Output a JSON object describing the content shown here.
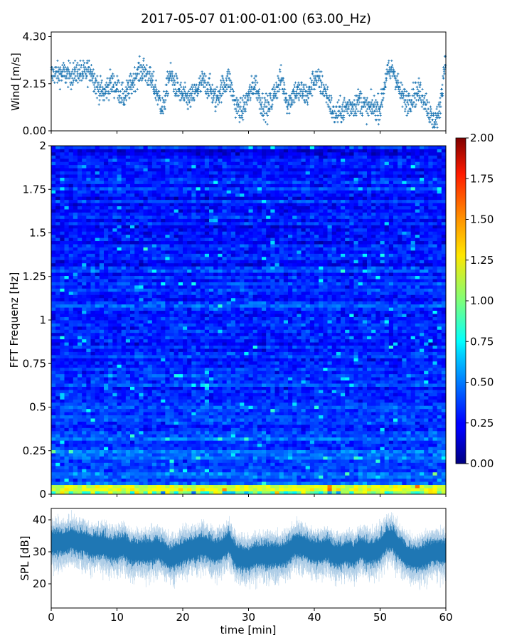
{
  "chart_data": [
    {
      "type": "scatter",
      "title": "2017-05-07 01:00-01:00 (63.00_Hz)",
      "ylabel": "Wind [m/s]",
      "xlim": [
        0,
        60
      ],
      "ylim": [
        0,
        4.3
      ],
      "yticks": [
        "0.00",
        "2.15",
        "4.30"
      ],
      "xticks": [
        0,
        10,
        20,
        30,
        40,
        50,
        60
      ],
      "marker": "+",
      "color": "#1f77b4",
      "x_unit": "min",
      "minute_mean_values": [
        2.6,
        2.6,
        2.6,
        2.5,
        2.7,
        2.6,
        2.8,
        2.0,
        1.7,
        2.2,
        2.0,
        1.5,
        2.0,
        2.6,
        2.8,
        2.4,
        1.8,
        1.0,
        2.6,
        2.0,
        1.6,
        1.4,
        1.8,
        2.2,
        2.0,
        1.4,
        2.0,
        2.4,
        1.2,
        0.9,
        1.6,
        2.2,
        1.2,
        1.0,
        1.8,
        2.4,
        1.2,
        1.8,
        1.8,
        1.6,
        2.4,
        2.2,
        1.6,
        0.7,
        0.9,
        1.1,
        1.2,
        1.4,
        1.0,
        1.1,
        1.0,
        2.6,
        2.8,
        1.8,
        1.3,
        1.6,
        1.8,
        1.3,
        0.4,
        0.8,
        3.5
      ]
    },
    {
      "type": "heatmap",
      "ylabel": "FFT Frequenz [Hz]",
      "xlim": [
        0,
        60
      ],
      "ylim": [
        0,
        2
      ],
      "yticks": [
        "0",
        "0.25",
        "0.5",
        "0.75",
        "1",
        "1.25",
        "1.5",
        "1.75",
        "2"
      ],
      "colormap": "jet",
      "clim": [
        0,
        2
      ],
      "colorbar_ticks": [
        "0.00",
        "0.25",
        "0.50",
        "0.75",
        "1.00",
        "1.25",
        "1.50",
        "1.75",
        "2.00"
      ],
      "frequency_bands_hz": [
        0,
        0.05,
        0.25,
        0.5,
        0.75,
        1.0,
        1.5,
        2.0
      ],
      "band_mean_levels": [
        1.1,
        0.42,
        0.36,
        0.33,
        0.31,
        0.3,
        0.28,
        0.28
      ]
    },
    {
      "type": "line",
      "ylabel": "SPL [dB]",
      "xlabel": "time [min]",
      "xlim": [
        0,
        60
      ],
      "ylim": [
        12.5,
        43.6
      ],
      "yticks": [
        "20",
        "30",
        "40"
      ],
      "xticks": [
        "0",
        "10",
        "20",
        "30",
        "40",
        "50",
        "60"
      ],
      "color": "#1f77b4",
      "minute_mean_values": [
        33,
        33,
        33,
        34,
        33,
        33,
        32,
        32,
        32,
        31,
        31,
        32,
        30,
        30,
        30,
        30,
        31,
        30,
        28,
        29,
        30,
        31,
        31,
        32,
        31,
        30,
        31,
        33,
        29,
        28,
        28,
        29,
        29,
        29,
        29,
        29,
        30,
        32,
        32,
        31,
        30,
        30,
        31,
        29,
        29,
        30,
        29,
        31,
        30,
        30,
        31,
        34,
        34,
        31,
        29,
        28,
        28,
        29,
        30,
        30,
        30
      ]
    }
  ]
}
